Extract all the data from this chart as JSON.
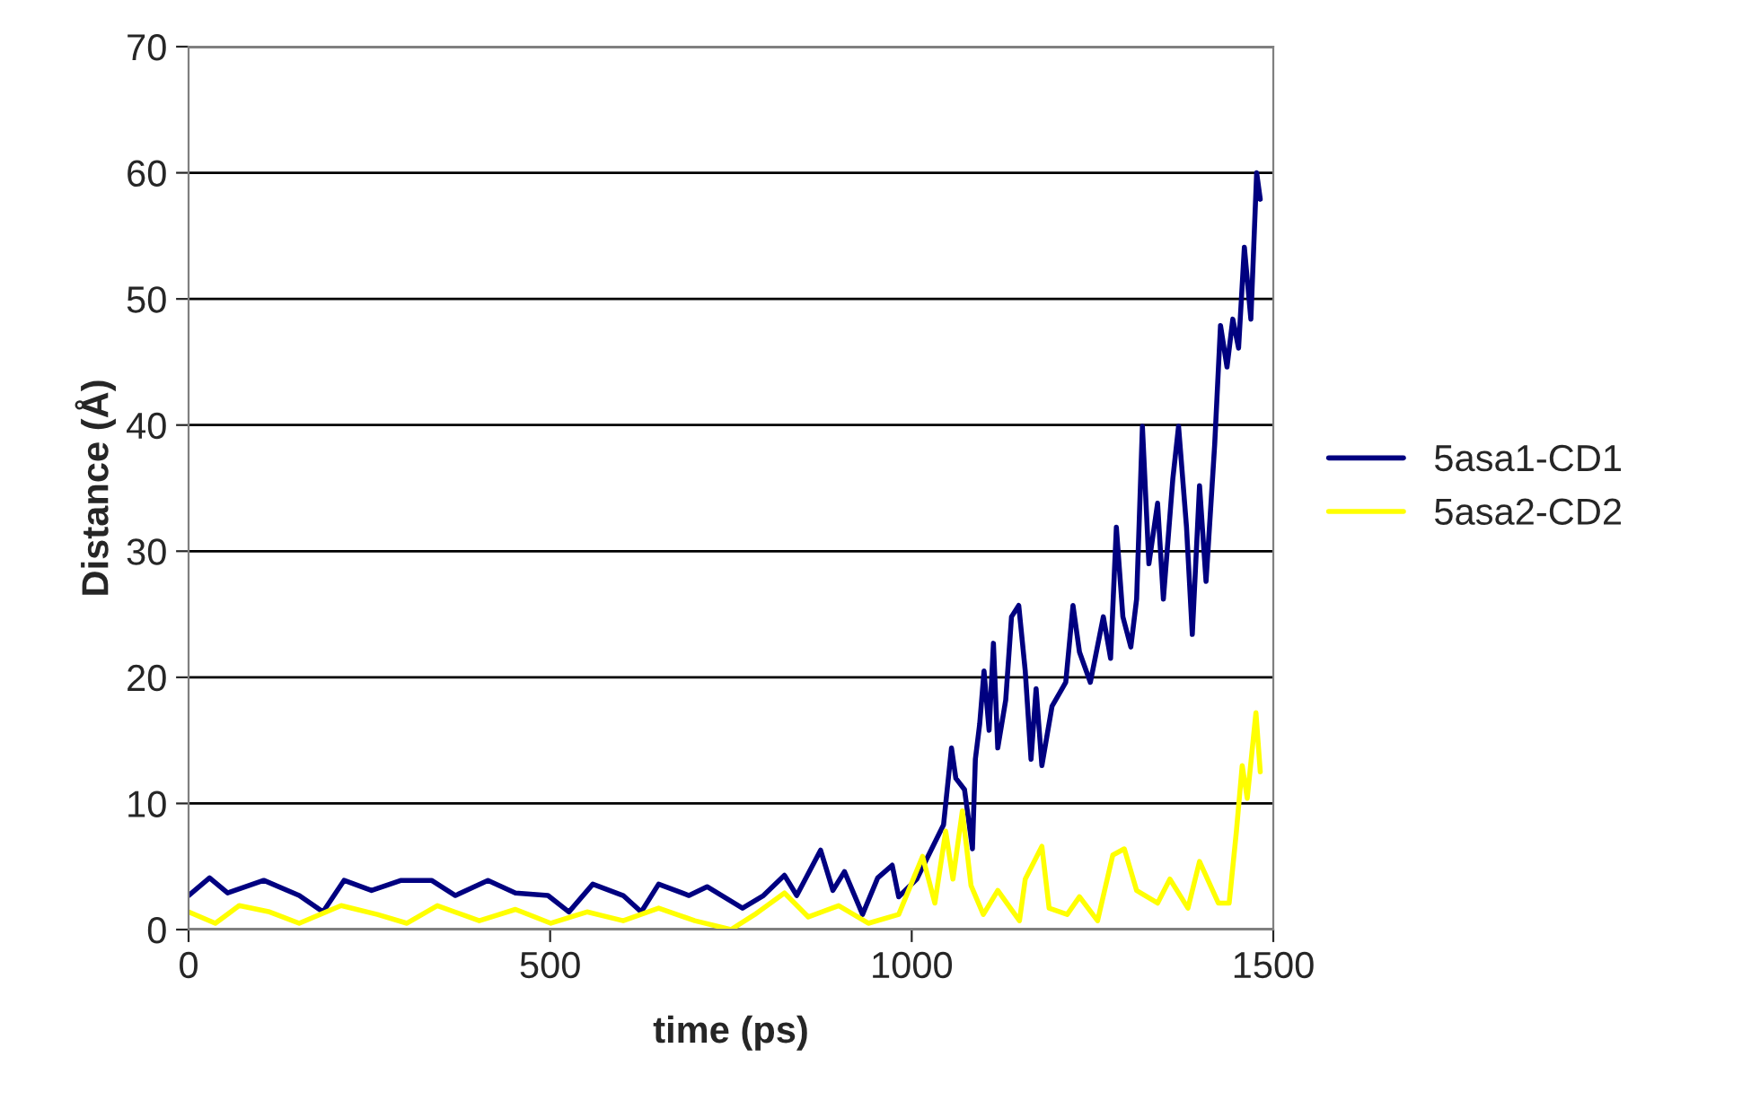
{
  "chart_data": {
    "type": "line",
    "xlabel": "time (ps)",
    "ylabel": "Distance (Å)",
    "xlim": [
      0,
      1500
    ],
    "xticks": [
      0,
      500,
      1000,
      1500
    ],
    "ylim": [
      0,
      70
    ],
    "yticks": [
      0,
      10,
      20,
      30,
      40,
      50,
      60,
      70
    ],
    "grid": "y",
    "legend": "right",
    "marker": "none",
    "line_style": "solid",
    "series": [
      {
        "name": "5asa1-CD1",
        "color": "#000080",
        "x": [
          0,
          29,
          54,
          104,
          153,
          186,
          215,
          253,
          294,
          336,
          369,
          414,
          452,
          497,
          526,
          559,
          601,
          626,
          650,
          692,
          717,
          766,
          795,
          824,
          841,
          874,
          891,
          907,
          932,
          953,
          973,
          982,
          1007,
          1044,
          1055,
          1061,
          1073,
          1084,
          1088,
          1094,
          1100,
          1107,
          1113,
          1119,
          1130,
          1138,
          1148,
          1157,
          1165,
          1172,
          1180,
          1194,
          1213,
          1223,
          1232,
          1247,
          1265,
          1275,
          1283,
          1292,
          1303,
          1311,
          1319,
          1328,
          1340,
          1348,
          1361,
          1369,
          1380,
          1388,
          1398,
          1407,
          1419,
          1427,
          1436,
          1444,
          1452,
          1460,
          1469,
          1477,
          1482
        ],
        "values": [
          2.7,
          4.1,
          2.9,
          3.9,
          2.7,
          1.4,
          3.9,
          3.1,
          3.9,
          3.9,
          2.7,
          3.9,
          2.9,
          2.7,
          1.4,
          3.6,
          2.7,
          1.4,
          3.6,
          2.7,
          3.4,
          1.7,
          2.7,
          4.3,
          2.7,
          6.3,
          3.1,
          4.6,
          1.2,
          4.1,
          5.1,
          2.6,
          4,
          8.3,
          14.4,
          12,
          11.1,
          6.4,
          13.5,
          16.3,
          20.5,
          15.8,
          22.7,
          14.4,
          18.2,
          24.8,
          25.7,
          20.5,
          13.5,
          19.1,
          13,
          17.7,
          19.6,
          25.7,
          22,
          19.6,
          24.8,
          21.5,
          31.9,
          24.8,
          22.4,
          26.2,
          39.9,
          29,
          33.8,
          26.2,
          35.7,
          39.9,
          31.9,
          23.4,
          35.2,
          27.6,
          38.5,
          47.9,
          44.6,
          48.4,
          46.1,
          54.1,
          48.4,
          60,
          57.9
        ]
      },
      {
        "name": "5asa2-CD2",
        "color": "#ffff00",
        "x": [
          0,
          37,
          70,
          112,
          153,
          211,
          261,
          302,
          344,
          402,
          452,
          501,
          551,
          601,
          650,
          700,
          750,
          783,
          824,
          857,
          899,
          940,
          982,
          1015,
          1032,
          1047,
          1057,
          1070,
          1082,
          1099,
          1119,
          1149,
          1157,
          1180,
          1190,
          1215,
          1232,
          1257,
          1278,
          1294,
          1311,
          1340,
          1357,
          1382,
          1398,
          1424,
          1439,
          1449,
          1457,
          1464,
          1476,
          1482
        ],
        "values": [
          1.4,
          0.5,
          1.9,
          1.4,
          0.5,
          1.9,
          1.2,
          0.5,
          1.9,
          0.7,
          1.6,
          0.5,
          1.4,
          0.7,
          1.7,
          0.7,
          0,
          1.2,
          2.9,
          1,
          1.9,
          0.5,
          1.2,
          5.8,
          2.1,
          7.8,
          4,
          9.4,
          3.5,
          1.2,
          3.1,
          0.7,
          4,
          6.6,
          1.7,
          1.2,
          2.6,
          0.7,
          5.9,
          6.4,
          3.1,
          2.1,
          4,
          1.7,
          5.4,
          2.1,
          2.1,
          7.8,
          13,
          10.4,
          17.2,
          12.5
        ]
      }
    ]
  }
}
